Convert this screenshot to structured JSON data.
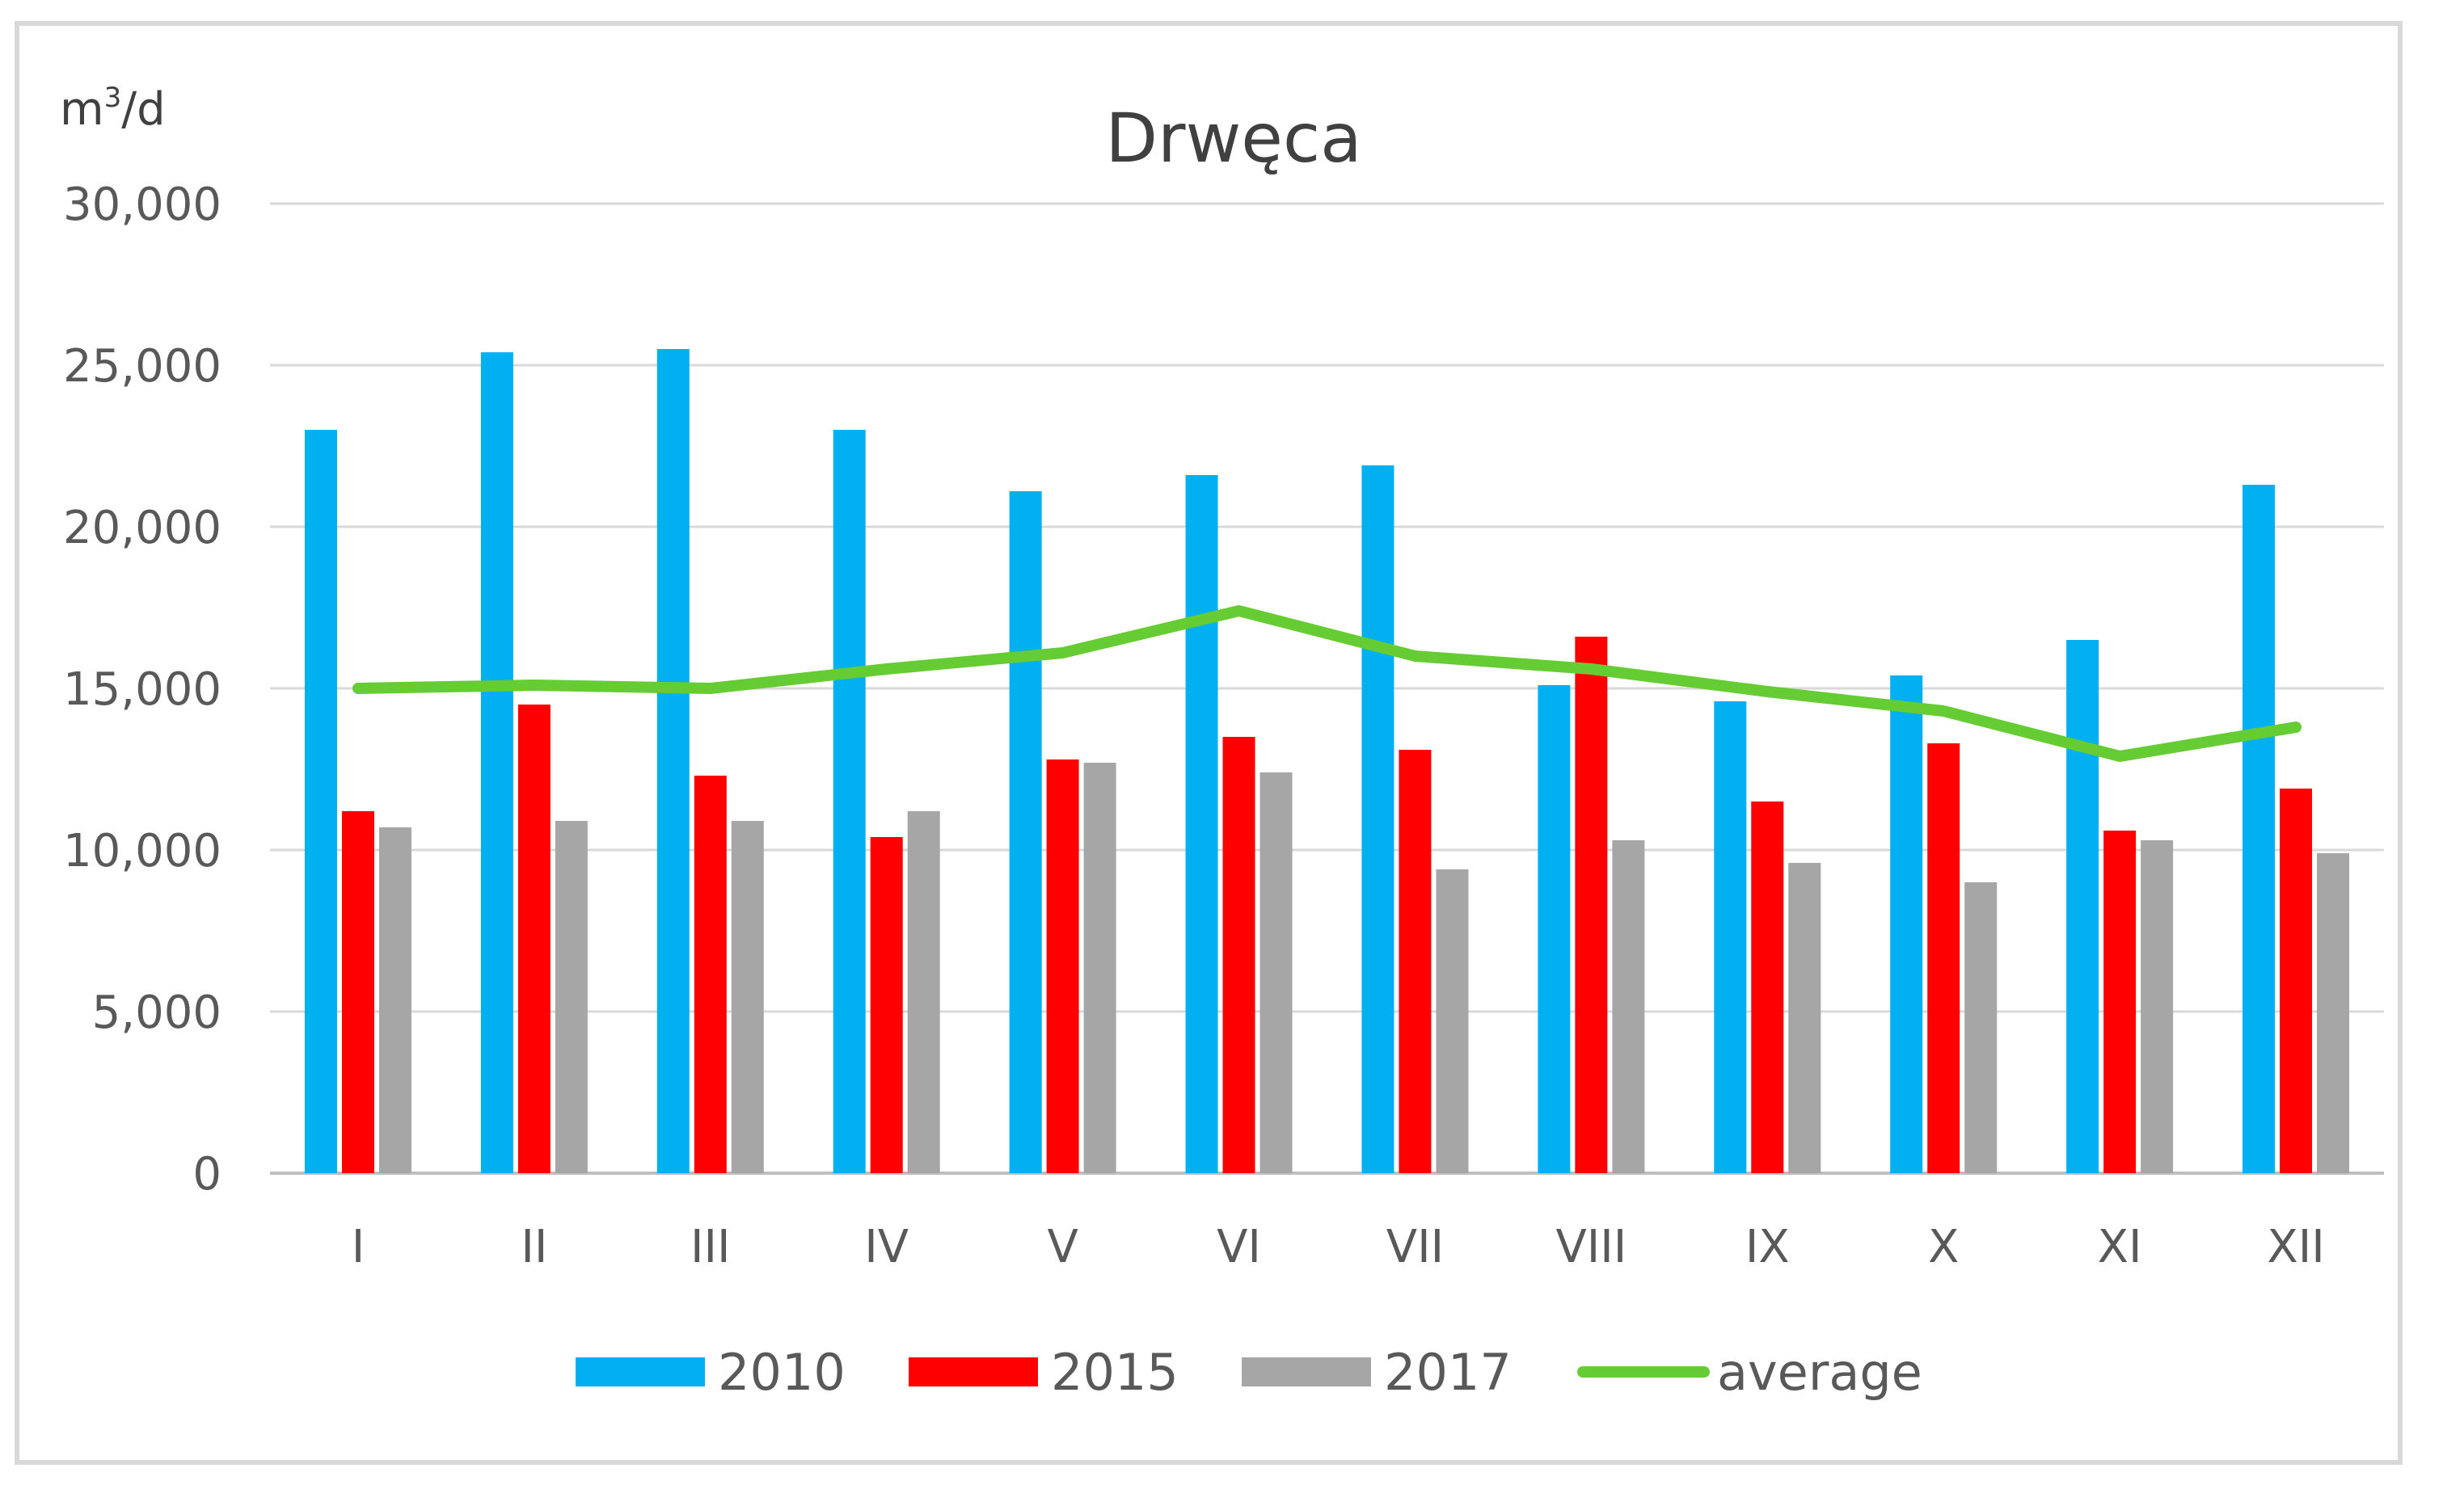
{
  "chart_data": {
    "type": "bar",
    "title": "Drwęca",
    "ylabel_base": "m",
    "ylabel_sup": "3",
    "ylabel_rest": "/d",
    "xlabel": "",
    "ylim": [
      0,
      30000
    ],
    "yticks": [
      0,
      5000,
      10000,
      15000,
      20000,
      25000,
      30000
    ],
    "ytick_labels": [
      "0",
      "5,000",
      "10,000",
      "15,000",
      "20,000",
      "25,000",
      "30,000"
    ],
    "grid": true,
    "legend_position": "bottom",
    "categories": [
      "I",
      "II",
      "III",
      "IV",
      "V",
      "VI",
      "VII",
      "VIII",
      "IX",
      "X",
      "XI",
      "XII"
    ],
    "series": [
      {
        "name": "2010",
        "kind": "bar",
        "color": "#00b0f0",
        "values": [
          23000,
          25400,
          25500,
          23000,
          21100,
          21600,
          21900,
          15100,
          14600,
          15400,
          16500,
          21300
        ]
      },
      {
        "name": "2015",
        "kind": "bar",
        "color": "#ff0000",
        "values": [
          11200,
          14500,
          12300,
          10400,
          12800,
          13500,
          13100,
          16600,
          11500,
          13300,
          10600,
          11900
        ]
      },
      {
        "name": "2017",
        "kind": "bar",
        "color": "#a6a6a6",
        "values": [
          10700,
          10900,
          10900,
          11200,
          12700,
          12400,
          9400,
          10300,
          9600,
          9000,
          10300,
          9900
        ]
      },
      {
        "name": "average",
        "kind": "line",
        "color": "#66cc33",
        "values": [
          15000,
          15100,
          15000,
          15600,
          16100,
          17400,
          16000,
          15600,
          14900,
          14300,
          12900,
          13800
        ]
      }
    ]
  }
}
